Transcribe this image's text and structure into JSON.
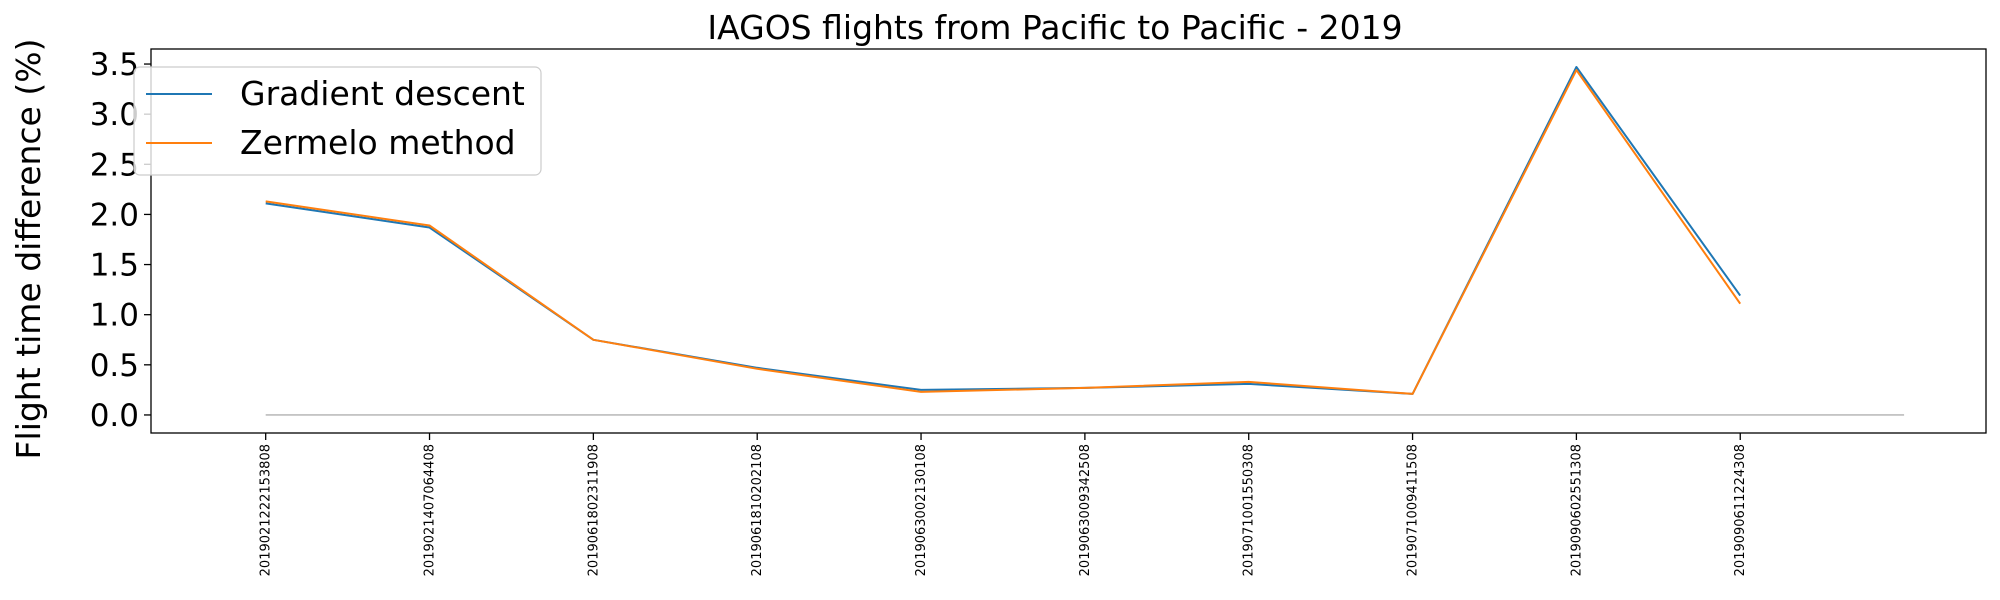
{
  "chart_data": {
    "type": "line",
    "title": "IAGOS flights from Pacific to Pacific - 2019",
    "xlabel": "",
    "ylabel": "Flight time difference (%)",
    "categories": [
      "2019021222153808",
      "2019021407064408",
      "2019061802311908",
      "2019061810202108",
      "2019063002130108",
      "2019063009342508",
      "2019071001550308",
      "2019071009411508",
      "2019090602551308",
      "2019090611224308"
    ],
    "series": [
      {
        "name": "Gradient descent",
        "color": "#1f77b4",
        "values": [
          2.11,
          1.87,
          0.75,
          0.47,
          0.25,
          0.27,
          0.31,
          0.21,
          3.47,
          1.19
        ]
      },
      {
        "name": "Zermelo method",
        "color": "#ff7f0e",
        "values": [
          2.13,
          1.89,
          0.75,
          0.46,
          0.23,
          0.27,
          0.33,
          0.21,
          3.44,
          1.11
        ]
      }
    ],
    "baseline": {
      "value": 0.0,
      "color": "#b0b0b0",
      "x_extent": [
        0,
        10
      ]
    },
    "yticks": [
      "0.0",
      "0.5",
      "1.0",
      "1.5",
      "2.0",
      "2.5",
      "3.0",
      "3.5"
    ],
    "ylim": [
      -0.18,
      3.65
    ],
    "xlim": [
      -0.7,
      10.5
    ],
    "legend": {
      "position": "top-left"
    },
    "grid": false
  }
}
